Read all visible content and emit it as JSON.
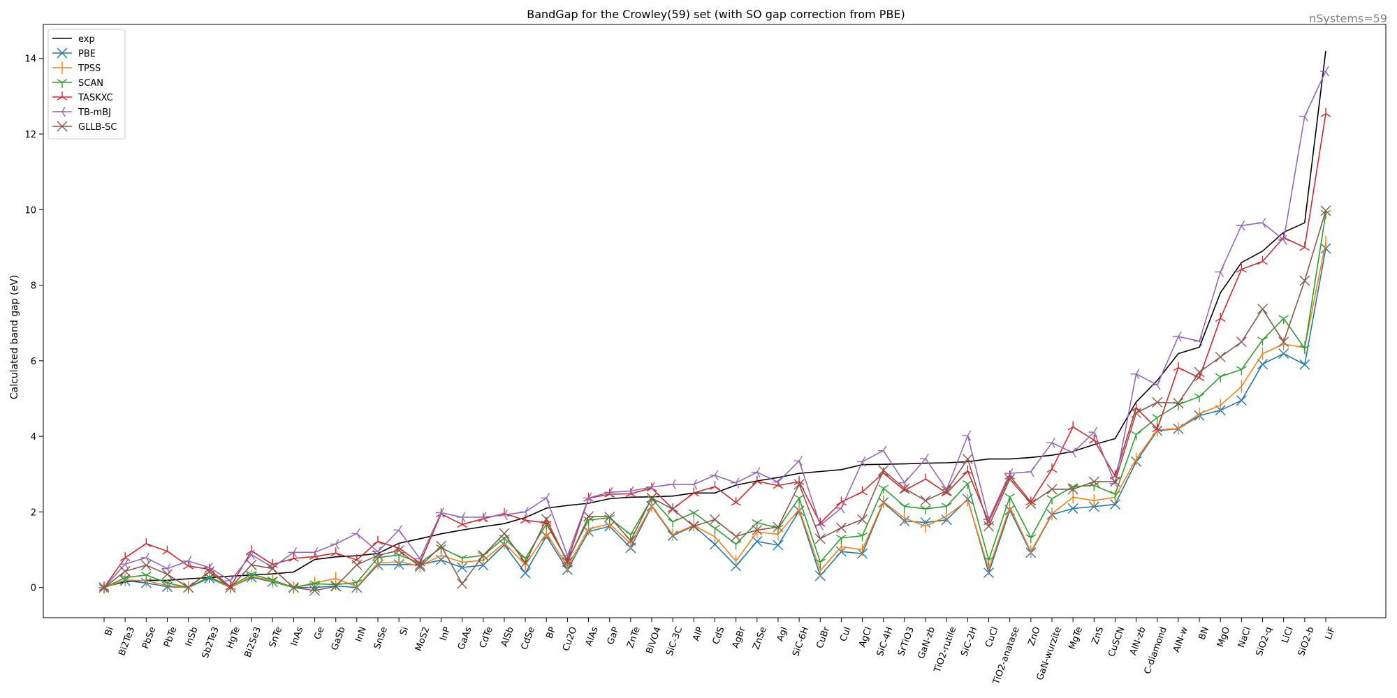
{
  "chart_data": {
    "type": "line",
    "title": "BandGap for the Crowley(59) set (with SO gap correction from PBE)",
    "annotation": "nSystems=59",
    "xlabel": "",
    "ylabel": "Calculated band gap (eV)",
    "ylim": [
      -0.8,
      14.9
    ],
    "yticks": [
      0,
      2,
      4,
      6,
      8,
      10,
      12,
      14
    ],
    "grid": false,
    "legend_position": "top-left",
    "categories": [
      "Bi",
      "Bi2Te3",
      "PbSe",
      "PbTe",
      "InSb",
      "Sb2Te3",
      "HgTe",
      "Bi2Se3",
      "SnTe",
      "InAs",
      "Ge",
      "GaSb",
      "InN",
      "SnSe",
      "Si",
      "MoS2",
      "InP",
      "GaAs",
      "CdTe",
      "AlSb",
      "CdSe",
      "BP",
      "Cu2O",
      "AlAs",
      "GaP",
      "ZnTe",
      "BiVO4",
      "SiC-3C",
      "AlP",
      "CdS",
      "AgBr",
      "ZnSe",
      "AgI",
      "SiC-6H",
      "CuBr",
      "CuI",
      "AgCl",
      "SiC-4H",
      "SrTiO3",
      "GaN-zb",
      "TiO2-rutile",
      "SiC-2H",
      "CuCl",
      "TiO2-anatase",
      "ZnO",
      "GaN-wurzite",
      "MgTe",
      "ZnS",
      "CuSCN",
      "AlN-zb",
      "C-diamond",
      "AlN-w",
      "BN",
      "MgO",
      "NaCl",
      "SiO2-q",
      "LiCl",
      "SiO2-b",
      "LiF"
    ],
    "series": [
      {
        "name": "exp",
        "color": "#000000",
        "marker": "none",
        "values": [
          0.02,
          0.15,
          0.19,
          0.19,
          0.23,
          0.26,
          0.3,
          0.33,
          0.36,
          0.41,
          0.74,
          0.81,
          0.84,
          0.9,
          1.17,
          1.29,
          1.42,
          1.52,
          1.61,
          1.69,
          1.85,
          2.1,
          2.17,
          2.23,
          2.35,
          2.39,
          2.4,
          2.42,
          2.5,
          2.5,
          2.71,
          2.82,
          2.91,
          3.02,
          3.07,
          3.12,
          3.25,
          3.26,
          3.27,
          3.29,
          3.3,
          3.33,
          3.4,
          3.4,
          3.44,
          3.5,
          3.6,
          3.78,
          3.94,
          4.91,
          5.48,
          6.19,
          6.36,
          7.8,
          8.6,
          8.9,
          9.4,
          9.65,
          14.2
        ]
      },
      {
        "name": "PBE",
        "color": "#1f77b4",
        "marker": "x",
        "values": [
          0.0,
          0.18,
          0.12,
          0.02,
          0.0,
          0.25,
          0.0,
          0.27,
          0.15,
          0.0,
          0.0,
          0.04,
          0.0,
          0.6,
          0.61,
          0.6,
          0.73,
          0.53,
          0.59,
          1.13,
          0.38,
          1.36,
          0.47,
          1.48,
          1.62,
          1.05,
          2.15,
          1.37,
          1.63,
          1.14,
          0.57,
          1.22,
          1.12,
          2.03,
          0.31,
          0.95,
          0.9,
          2.25,
          1.76,
          1.72,
          1.79,
          2.34,
          0.39,
          2.05,
          0.92,
          1.93,
          2.09,
          2.14,
          2.2,
          3.33,
          4.15,
          4.2,
          4.55,
          4.69,
          4.95,
          5.91,
          6.19,
          5.9,
          8.97
        ]
      },
      {
        "name": "TPSS",
        "color": "#ff7f0e",
        "marker": "|",
        "values": [
          0.0,
          0.2,
          0.18,
          0.05,
          0.0,
          0.28,
          0.0,
          0.3,
          0.17,
          0.0,
          0.12,
          0.24,
          0.02,
          0.65,
          0.68,
          0.57,
          0.85,
          0.67,
          0.72,
          1.18,
          0.6,
          1.44,
          0.55,
          1.55,
          1.68,
          1.16,
          2.17,
          1.4,
          1.65,
          1.34,
          0.7,
          1.47,
          1.41,
          2.07,
          0.45,
          1.08,
          1.0,
          2.27,
          1.84,
          1.62,
          1.89,
          2.31,
          0.49,
          2.13,
          0.95,
          1.95,
          2.39,
          2.3,
          2.39,
          3.4,
          4.17,
          4.21,
          4.6,
          4.82,
          5.32,
          6.19,
          6.44,
          6.35,
          9.14
        ]
      },
      {
        "name": "SCAN",
        "color": "#2ca02c",
        "marker": "1",
        "values": [
          0.0,
          0.26,
          0.33,
          0.12,
          0.0,
          0.28,
          0.03,
          0.35,
          0.2,
          0.0,
          0.1,
          0.08,
          0.13,
          0.79,
          0.86,
          0.65,
          1.05,
          0.78,
          0.85,
          1.31,
          0.77,
          1.68,
          0.71,
          1.79,
          1.84,
          1.4,
          2.35,
          1.74,
          1.98,
          1.57,
          1.15,
          1.72,
          1.57,
          2.37,
          0.67,
          1.31,
          1.37,
          2.63,
          2.15,
          2.08,
          2.15,
          2.75,
          0.73,
          2.4,
          1.32,
          2.35,
          2.67,
          2.7,
          2.47,
          4.05,
          4.5,
          4.84,
          5.05,
          5.58,
          5.77,
          6.55,
          7.12,
          6.33,
          9.9
        ]
      },
      {
        "name": "TASKXC",
        "color": "#d62728",
        "marker": "2",
        "values": [
          0.0,
          0.79,
          1.16,
          0.96,
          0.57,
          0.48,
          0.02,
          0.97,
          0.61,
          0.77,
          0.82,
          0.91,
          0.73,
          1.22,
          1.04,
          0.65,
          1.95,
          1.67,
          1.82,
          1.96,
          1.78,
          1.71,
          0.7,
          2.36,
          2.47,
          2.48,
          2.63,
          2.08,
          2.5,
          2.67,
          2.25,
          2.81,
          2.7,
          2.8,
          1.7,
          2.26,
          2.53,
          3.03,
          2.57,
          2.87,
          2.5,
          3.08,
          1.74,
          2.95,
          2.26,
          3.13,
          4.25,
          3.9,
          2.95,
          4.75,
          4.2,
          5.82,
          5.55,
          7.12,
          8.42,
          8.63,
          9.26,
          9.0,
          12.54
        ]
      },
      {
        "name": "TB-mBJ",
        "color": "#9467bd",
        "marker": "3",
        "values": [
          0.0,
          0.62,
          0.79,
          0.5,
          0.7,
          0.53,
          0.18,
          0.87,
          0.53,
          0.93,
          0.93,
          1.15,
          1.43,
          0.95,
          1.52,
          0.76,
          1.98,
          1.86,
          1.86,
          1.92,
          2.0,
          2.37,
          0.84,
          2.37,
          2.52,
          2.55,
          2.66,
          2.73,
          2.73,
          2.97,
          2.77,
          3.05,
          2.79,
          3.35,
          1.65,
          2.1,
          3.33,
          3.62,
          2.77,
          3.41,
          2.59,
          4.02,
          1.8,
          3.02,
          3.06,
          3.83,
          3.57,
          4.11,
          2.75,
          5.65,
          5.36,
          6.64,
          6.52,
          8.35,
          9.58,
          9.65,
          9.2,
          12.47,
          13.66
        ]
      },
      {
        "name": "GLLB-SC",
        "color": "#8c564b",
        "marker": "x",
        "values": [
          0.0,
          0.43,
          0.59,
          0.35,
          0.0,
          0.42,
          0.0,
          0.6,
          0.5,
          0.0,
          -0.08,
          0.03,
          0.6,
          0.85,
          0.98,
          0.55,
          1.1,
          0.1,
          0.85,
          1.43,
          0.65,
          1.81,
          0.67,
          1.88,
          1.87,
          1.24,
          2.37,
          2.07,
          1.62,
          1.8,
          1.35,
          1.52,
          1.6,
          2.73,
          1.29,
          1.58,
          1.8,
          3.1,
          2.62,
          2.3,
          2.56,
          3.4,
          1.62,
          2.87,
          2.22,
          2.6,
          2.6,
          2.8,
          2.8,
          4.62,
          4.9,
          4.88,
          5.7,
          6.1,
          6.5,
          7.37,
          6.5,
          8.12,
          9.97
        ]
      }
    ]
  }
}
